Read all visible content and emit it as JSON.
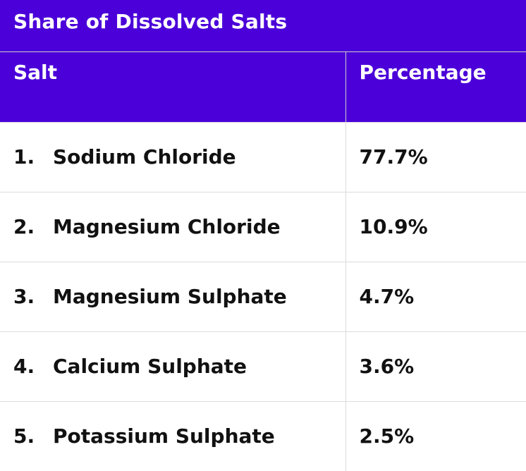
{
  "title": "Share of Dissolved Salts",
  "header": {
    "salt": "Salt",
    "percentage": "Percentage"
  },
  "rows": [
    {
      "num": "1.",
      "salt": "Sodium Chloride",
      "percentage": "77.7%"
    },
    {
      "num": "2.",
      "salt": "Magnesium Chloride",
      "percentage": "10.9%"
    },
    {
      "num": "3.",
      "salt": "Magnesium Sulphate",
      "percentage": "4.7%"
    },
    {
      "num": "4.",
      "salt": "Calcium Sulphate",
      "percentage": "3.6%"
    },
    {
      "num": "5.",
      "salt": "Potassium Sulphate",
      "percentage": "2.5%"
    }
  ],
  "colors": {
    "header_bg": "#4b00d9",
    "header_text": "#ffffff",
    "body_text": "#111111",
    "grid": "#dcdcdc"
  }
}
